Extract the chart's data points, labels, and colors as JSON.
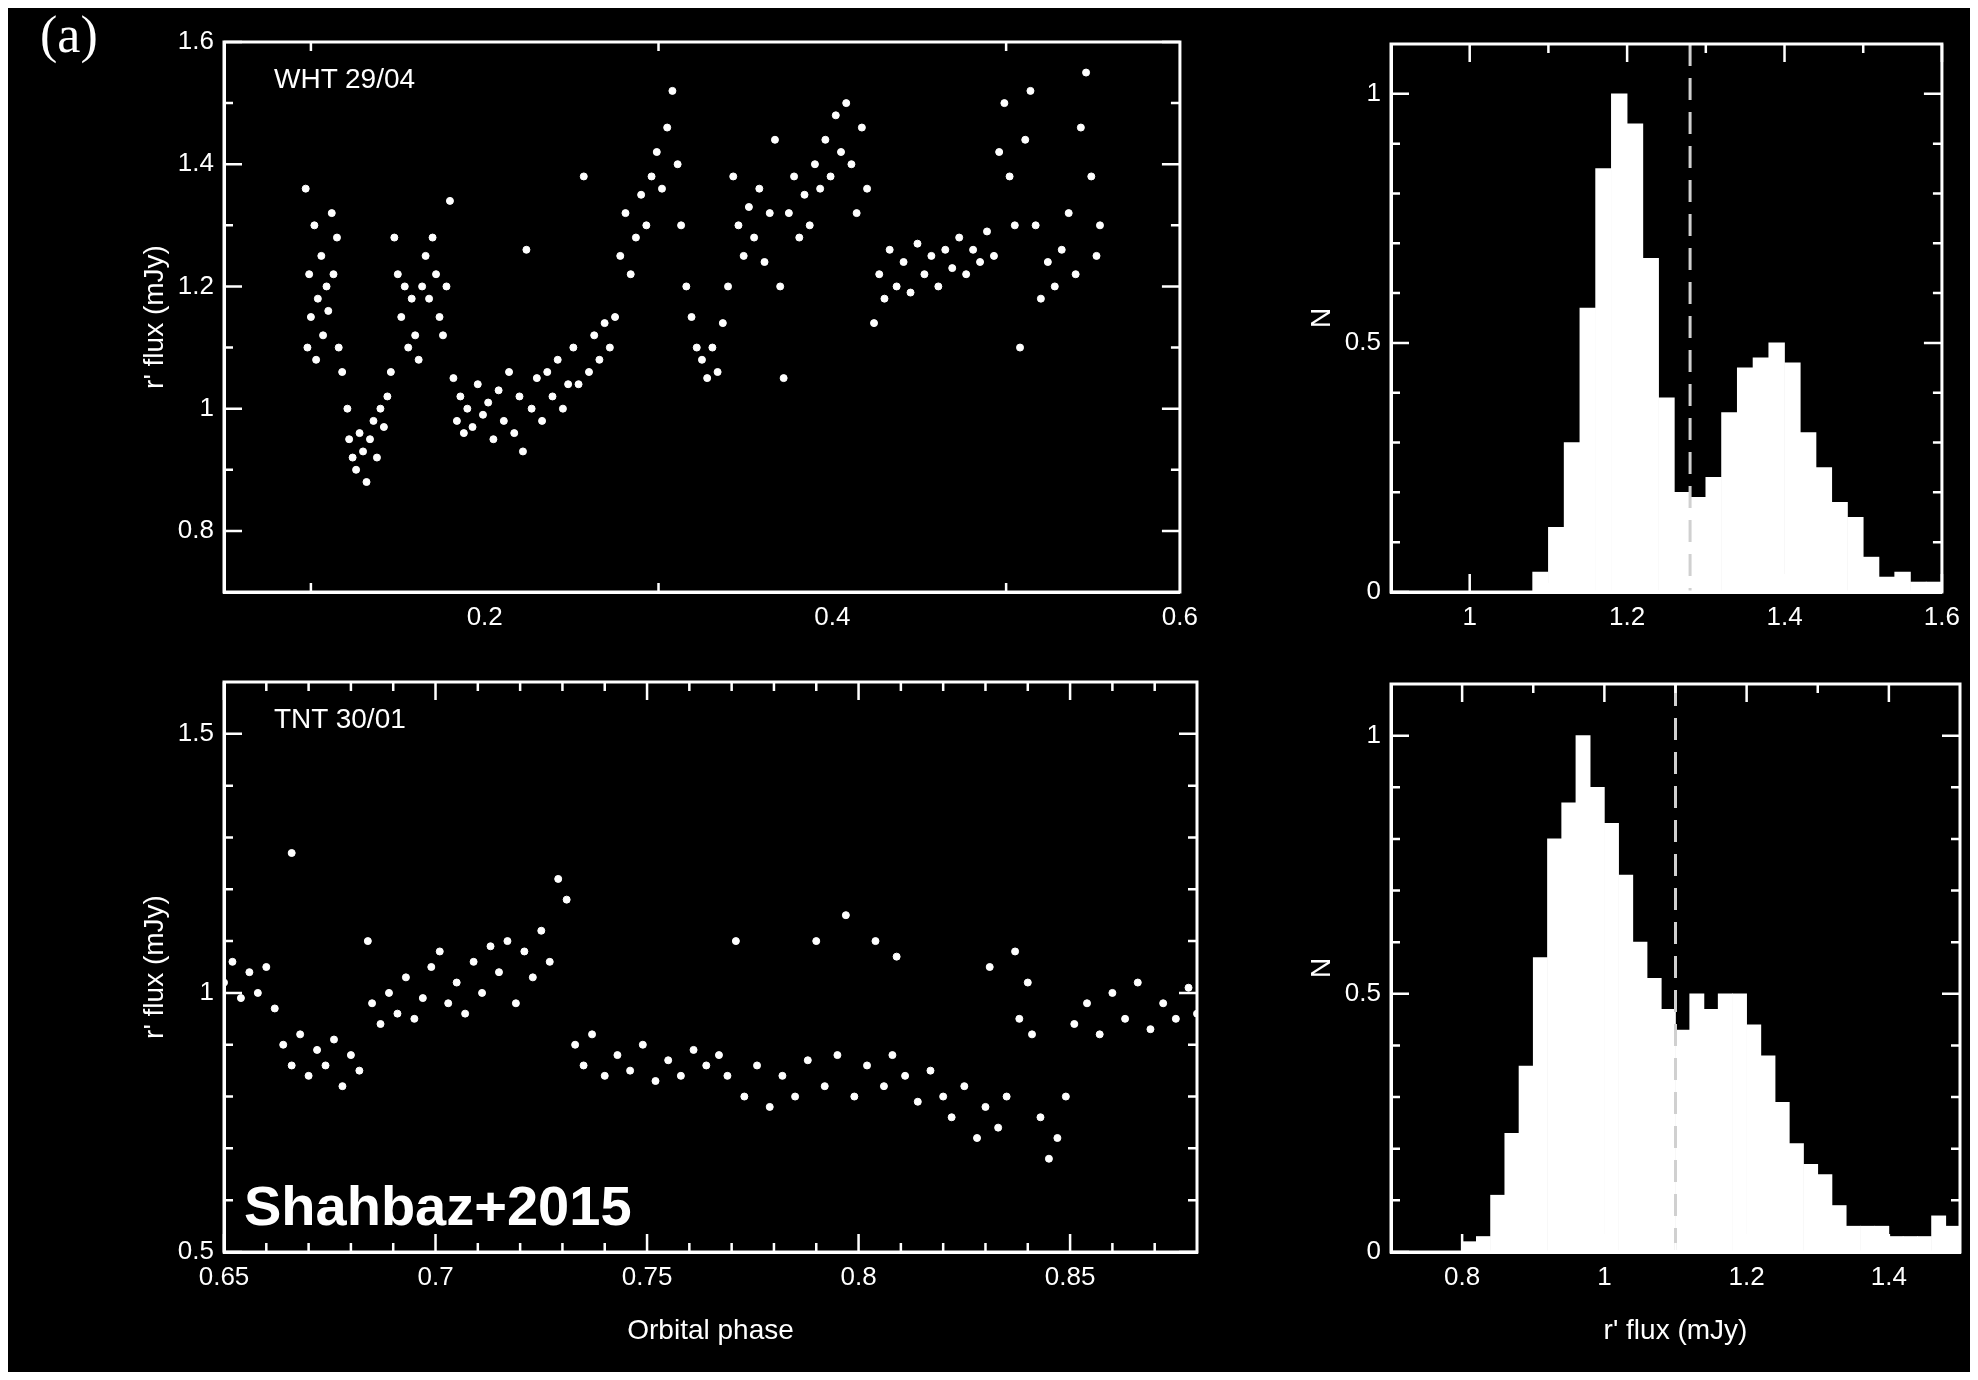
{
  "chart_data": [
    {
      "type": "scatter",
      "title": "(a)",
      "ylabel": "r' flux (mJy)",
      "annotations": [
        "WHT 29/04"
      ],
      "color": "#ffffff",
      "marker": "circle",
      "xlim": [
        0.05,
        0.6
      ],
      "ylim": [
        0.7,
        1.6
      ],
      "xticks": [
        {
          "value": 0.1,
          "label": null
        },
        0.2,
        {
          "value": 0.3,
          "label": null
        },
        0.4,
        {
          "value": 0.5,
          "label": null
        },
        0.6
      ],
      "yticks": [
        0.8,
        {
          "value": 0.9,
          "label": null
        },
        1,
        {
          "value": 1.1,
          "label": null
        },
        1.2,
        {
          "value": 1.3,
          "label": null
        },
        1.4,
        {
          "value": 1.5,
          "label": null
        },
        1.6
      ],
      "x": [
        0.097,
        0.098,
        0.099,
        0.1,
        0.102,
        0.103,
        0.104,
        0.106,
        0.107,
        0.109,
        0.11,
        0.112,
        0.113,
        0.115,
        0.116,
        0.118,
        0.121,
        0.122,
        0.124,
        0.126,
        0.128,
        0.13,
        0.132,
        0.134,
        0.136,
        0.138,
        0.14,
        0.142,
        0.144,
        0.146,
        0.148,
        0.15,
        0.152,
        0.154,
        0.156,
        0.158,
        0.16,
        0.162,
        0.164,
        0.166,
        0.168,
        0.17,
        0.172,
        0.174,
        0.176,
        0.178,
        0.18,
        0.182,
        0.184,
        0.186,
        0.188,
        0.19,
        0.193,
        0.196,
        0.199,
        0.202,
        0.205,
        0.208,
        0.211,
        0.214,
        0.217,
        0.22,
        0.222,
        0.224,
        0.227,
        0.23,
        0.233,
        0.236,
        0.239,
        0.242,
        0.245,
        0.248,
        0.251,
        0.254,
        0.257,
        0.26,
        0.263,
        0.266,
        0.269,
        0.272,
        0.275,
        0.278,
        0.281,
        0.284,
        0.287,
        0.29,
        0.293,
        0.296,
        0.299,
        0.302,
        0.305,
        0.308,
        0.311,
        0.313,
        0.316,
        0.319,
        0.322,
        0.325,
        0.328,
        0.331,
        0.334,
        0.337,
        0.34,
        0.343,
        0.346,
        0.349,
        0.352,
        0.355,
        0.358,
        0.361,
        0.364,
        0.367,
        0.37,
        0.372,
        0.375,
        0.378,
        0.381,
        0.384,
        0.387,
        0.39,
        0.393,
        0.396,
        0.399,
        0.402,
        0.405,
        0.408,
        0.411,
        0.414,
        0.417,
        0.42,
        0.424,
        0.427,
        0.43,
        0.433,
        0.437,
        0.441,
        0.445,
        0.449,
        0.453,
        0.457,
        0.461,
        0.465,
        0.469,
        0.473,
        0.477,
        0.481,
        0.485,
        0.489,
        0.493,
        0.496,
        0.499,
        0.502,
        0.505,
        0.508,
        0.511,
        0.514,
        0.517,
        0.52,
        0.524,
        0.528,
        0.532,
        0.536,
        0.54,
        0.543,
        0.546,
        0.549,
        0.552,
        0.554
      ],
      "values": [
        1.36,
        1.1,
        1.22,
        1.15,
        1.3,
        1.08,
        1.18,
        1.25,
        1.12,
        1.2,
        1.16,
        1.32,
        1.22,
        1.28,
        1.1,
        1.06,
        1.0,
        0.95,
        0.92,
        0.9,
        0.96,
        0.93,
        0.88,
        0.95,
        0.98,
        0.92,
        1.0,
        0.97,
        1.02,
        1.06,
        1.28,
        1.22,
        1.15,
        1.2,
        1.1,
        1.18,
        1.12,
        1.08,
        1.2,
        1.25,
        1.18,
        1.28,
        1.22,
        1.15,
        1.12,
        1.2,
        1.34,
        1.05,
        0.98,
        1.02,
        0.96,
        1.0,
        0.97,
        1.04,
        0.99,
        1.01,
        0.95,
        1.03,
        0.98,
        1.06,
        0.96,
        1.02,
        0.93,
        1.26,
        1.0,
        1.05,
        0.98,
        1.06,
        1.02,
        1.08,
        1.0,
        1.04,
        1.1,
        1.04,
        1.38,
        1.06,
        1.12,
        1.08,
        1.14,
        1.1,
        1.15,
        1.25,
        1.32,
        1.22,
        1.28,
        1.35,
        1.3,
        1.38,
        1.42,
        1.36,
        1.46,
        1.52,
        1.4,
        1.3,
        1.2,
        1.15,
        1.1,
        1.08,
        1.05,
        1.1,
        1.06,
        1.14,
        1.2,
        1.38,
        1.3,
        1.25,
        1.33,
        1.28,
        1.36,
        1.24,
        1.32,
        1.44,
        1.2,
        1.05,
        1.32,
        1.38,
        1.28,
        1.35,
        1.3,
        1.4,
        1.36,
        1.44,
        1.38,
        1.48,
        1.42,
        1.5,
        1.4,
        1.32,
        1.46,
        1.36,
        1.14,
        1.22,
        1.18,
        1.26,
        1.2,
        1.24,
        1.19,
        1.27,
        1.22,
        1.25,
        1.2,
        1.26,
        1.23,
        1.28,
        1.22,
        1.26,
        1.24,
        1.29,
        1.25,
        1.42,
        1.5,
        1.38,
        1.3,
        1.1,
        1.44,
        1.52,
        1.3,
        1.18,
        1.24,
        1.2,
        1.26,
        1.32,
        1.22,
        1.46,
        1.55,
        1.38,
        1.25,
        1.3
      ]
    },
    {
      "type": "histogram",
      "ylabel": "N",
      "color": "#ffffff",
      "xlim": [
        0.9,
        1.6
      ],
      "ylim": [
        0,
        1.1
      ],
      "xticks": [
        1,
        {
          "value": 1.1,
          "label": null
        },
        1.2,
        {
          "value": 1.3,
          "label": null
        },
        1.4,
        {
          "value": 1.5,
          "label": null
        },
        1.6
      ],
      "yticks": [
        0,
        {
          "value": 0.1,
          "label": null
        },
        {
          "value": 0.2,
          "label": null
        },
        {
          "value": 0.3,
          "label": null
        },
        {
          "value": 0.4,
          "label": null
        },
        0.5,
        {
          "value": 0.6,
          "label": null
        },
        {
          "value": 0.7,
          "label": null
        },
        {
          "value": 0.8,
          "label": null
        },
        {
          "value": 0.9,
          "label": null
        },
        1
      ],
      "bins": [
        1.06,
        1.08,
        1.1,
        1.12,
        1.14,
        1.16,
        1.18,
        1.2,
        1.22,
        1.24,
        1.26,
        1.28,
        1.3,
        1.32,
        1.34,
        1.36,
        1.38,
        1.4,
        1.42,
        1.44,
        1.46,
        1.48,
        1.5,
        1.52,
        1.54,
        1.56,
        1.58,
        1.6
      ],
      "values": [
        0,
        0.04,
        0.13,
        0.3,
        0.57,
        0.85,
        1.0,
        0.94,
        0.67,
        0.39,
        0.2,
        0.19,
        0.23,
        0.36,
        0.45,
        0.47,
        0.5,
        0.46,
        0.32,
        0.25,
        0.18,
        0.15,
        0.07,
        0.03,
        0.04,
        0.02,
        0.02
      ],
      "ref_lines": [
        {
          "axis": "x",
          "value": 1.28,
          "color": "#d0d0d0",
          "line_style": "dashed"
        }
      ]
    },
    {
      "type": "scatter",
      "xlabel": "Orbital phase",
      "ylabel": "r' flux (mJy)",
      "annotations": [
        "TNT 30/01",
        "Shahbaz+2015"
      ],
      "color": "#ffffff",
      "marker": "circle",
      "xlim": [
        0.65,
        0.88
      ],
      "ylim": [
        0.5,
        1.6
      ],
      "xticks": [
        0.65,
        {
          "value": 0.66,
          "label": null
        },
        {
          "value": 0.67,
          "label": null
        },
        {
          "value": 0.68,
          "label": null
        },
        {
          "value": 0.69,
          "label": null
        },
        0.7,
        {
          "value": 0.71,
          "label": null
        },
        {
          "value": 0.72,
          "label": null
        },
        {
          "value": 0.73,
          "label": null
        },
        {
          "value": 0.74,
          "label": null
        },
        0.75,
        {
          "value": 0.76,
          "label": null
        },
        {
          "value": 0.77,
          "label": null
        },
        {
          "value": 0.78,
          "label": null
        },
        {
          "value": 0.79,
          "label": null
        },
        0.8,
        {
          "value": 0.81,
          "label": null
        },
        {
          "value": 0.82,
          "label": null
        },
        {
          "value": 0.83,
          "label": null
        },
        {
          "value": 0.84,
          "label": null
        },
        0.85,
        {
          "value": 0.86,
          "label": null
        },
        {
          "value": 0.87,
          "label": null
        }
      ],
      "yticks": [
        0.5,
        {
          "value": 0.6,
          "label": null
        },
        {
          "value": 0.7,
          "label": null
        },
        {
          "value": 0.8,
          "label": null
        },
        {
          "value": 0.9,
          "label": null
        },
        1,
        {
          "value": 1.1,
          "label": null
        },
        {
          "value": 1.2,
          "label": null
        },
        {
          "value": 1.3,
          "label": null
        },
        {
          "value": 1.4,
          "label": null
        },
        1.5
      ],
      "x": [
        0.65,
        0.652,
        0.654,
        0.656,
        0.658,
        0.66,
        0.662,
        0.664,
        0.666,
        0.666,
        0.668,
        0.67,
        0.672,
        0.674,
        0.676,
        0.678,
        0.68,
        0.682,
        0.684,
        0.685,
        0.687,
        0.689,
        0.691,
        0.693,
        0.695,
        0.697,
        0.699,
        0.701,
        0.703,
        0.705,
        0.707,
        0.709,
        0.711,
        0.713,
        0.715,
        0.717,
        0.719,
        0.721,
        0.723,
        0.725,
        0.727,
        0.729,
        0.731,
        0.733,
        0.735,
        0.737,
        0.74,
        0.743,
        0.746,
        0.749,
        0.752,
        0.755,
        0.758,
        0.761,
        0.764,
        0.767,
        0.769,
        0.771,
        0.773,
        0.776,
        0.779,
        0.782,
        0.785,
        0.788,
        0.79,
        0.792,
        0.795,
        0.797,
        0.799,
        0.802,
        0.804,
        0.806,
        0.808,
        0.809,
        0.811,
        0.814,
        0.817,
        0.82,
        0.822,
        0.825,
        0.828,
        0.83,
        0.831,
        0.833,
        0.835,
        0.837,
        0.838,
        0.84,
        0.841,
        0.843,
        0.845,
        0.847,
        0.849,
        0.851,
        0.854,
        0.857,
        0.86,
        0.863,
        0.866,
        0.869,
        0.872,
        0.875,
        0.878,
        0.88
      ],
      "values": [
        1.02,
        1.06,
        0.99,
        1.04,
        1.0,
        1.05,
        0.97,
        0.9,
        1.27,
        0.86,
        0.92,
        0.84,
        0.89,
        0.86,
        0.91,
        0.82,
        0.88,
        0.85,
        1.1,
        0.98,
        0.94,
        1.0,
        0.96,
        1.03,
        0.95,
        0.99,
        1.05,
        1.08,
        0.98,
        1.02,
        0.96,
        1.06,
        1.0,
        1.09,
        1.04,
        1.1,
        0.98,
        1.08,
        1.03,
        1.12,
        1.06,
        1.22,
        1.18,
        0.9,
        0.86,
        0.92,
        0.84,
        0.88,
        0.85,
        0.9,
        0.83,
        0.87,
        0.84,
        0.89,
        0.86,
        0.88,
        0.84,
        1.1,
        0.8,
        0.86,
        0.78,
        0.84,
        0.8,
        0.87,
        1.1,
        0.82,
        0.88,
        1.15,
        0.8,
        0.86,
        1.1,
        0.82,
        0.88,
        1.07,
        0.84,
        0.79,
        0.85,
        0.8,
        0.76,
        0.82,
        0.72,
        0.78,
        1.05,
        0.74,
        0.8,
        1.08,
        0.95,
        1.02,
        0.92,
        0.76,
        0.68,
        0.72,
        0.8,
        0.94,
        0.98,
        0.92,
        1.0,
        0.95,
        1.02,
        0.93,
        0.98,
        0.95,
        1.01,
        0.96
      ]
    },
    {
      "type": "histogram",
      "xlabel": "r' flux (mJy)",
      "ylabel": "N",
      "color": "#ffffff",
      "xlim": [
        0.7,
        1.5
      ],
      "ylim": [
        0,
        1.1
      ],
      "xticks": [
        0.8,
        {
          "value": 0.9,
          "label": null
        },
        1,
        {
          "value": 1.1,
          "label": null
        },
        1.2,
        {
          "value": 1.3,
          "label": null
        },
        1.4
      ],
      "yticks": [
        0,
        {
          "value": 0.1,
          "label": null
        },
        {
          "value": 0.2,
          "label": null
        },
        {
          "value": 0.3,
          "label": null
        },
        {
          "value": 0.4,
          "label": null
        },
        0.5,
        {
          "value": 0.6,
          "label": null
        },
        {
          "value": 0.7,
          "label": null
        },
        {
          "value": 0.8,
          "label": null
        },
        {
          "value": 0.9,
          "label": null
        },
        1
      ],
      "bins": [
        0.78,
        0.8,
        0.82,
        0.84,
        0.86,
        0.88,
        0.9,
        0.92,
        0.94,
        0.96,
        0.98,
        1.0,
        1.02,
        1.04,
        1.06,
        1.08,
        1.1,
        1.12,
        1.14,
        1.16,
        1.18,
        1.2,
        1.22,
        1.24,
        1.26,
        1.28,
        1.3,
        1.32,
        1.34,
        1.36,
        1.38,
        1.4,
        1.42,
        1.44,
        1.46,
        1.48,
        1.5
      ],
      "values": [
        0,
        0.02,
        0.03,
        0.11,
        0.23,
        0.36,
        0.57,
        0.8,
        0.87,
        1.0,
        0.9,
        0.83,
        0.73,
        0.6,
        0.53,
        0.47,
        0.43,
        0.5,
        0.47,
        0.5,
        0.5,
        0.44,
        0.38,
        0.29,
        0.21,
        0.17,
        0.15,
        0.09,
        0.05,
        0.05,
        0.05,
        0.03,
        0.03,
        0.03,
        0.07,
        0.05
      ],
      "ref_lines": [
        {
          "axis": "x",
          "value": 1.1,
          "color": "#d0d0d0",
          "line_style": "dashed"
        }
      ]
    }
  ]
}
